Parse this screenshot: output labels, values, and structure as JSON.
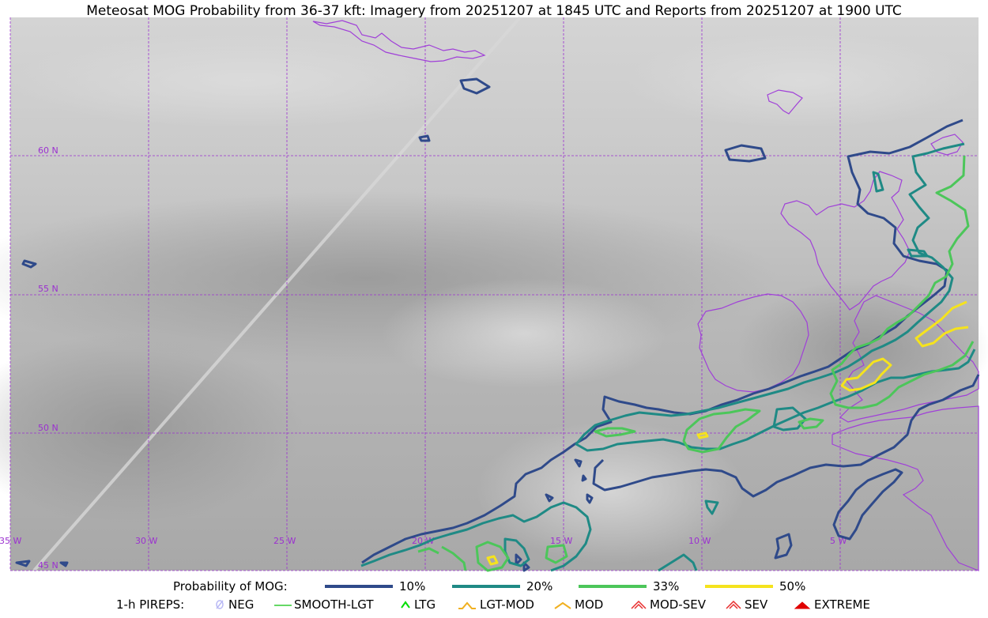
{
  "title": "Meteosat MOG Probability from 36-37 kft: Imagery from 20251207 at 1845 UTC and Reports from 20251207 at 1900 UTC",
  "map": {
    "lat_labels": [
      "60 N",
      "55 N",
      "50 N",
      "45 N"
    ],
    "lon_labels": [
      "35 W",
      "30 W",
      "25 W",
      "20 W",
      "15 W",
      "10 W",
      "5 W"
    ],
    "colors": {
      "grid": "#9b30d0",
      "coast": "#a040d8",
      "p10": "#2f4a8a",
      "p20": "#1f8a85",
      "p33": "#4cc65a",
      "p50": "#f5e31d"
    }
  },
  "legend": {
    "mog_label": "Probability of MOG:",
    "mog_items": [
      {
        "label": "10%",
        "color": "#2f4a8a"
      },
      {
        "label": "20%",
        "color": "#1f8a85"
      },
      {
        "label": "33%",
        "color": "#4cc65a"
      },
      {
        "label": "50%",
        "color": "#f5e31d"
      }
    ],
    "pirep_label": "1-h PIREPS:",
    "pirep_items": [
      {
        "label": "NEG",
        "icon": "neg-icon",
        "color": "#b9b9f5"
      },
      {
        "label": "SMOOTH-LGT",
        "icon": "smooth-lgt-icon",
        "color": "#33cc33"
      },
      {
        "label": "LTG",
        "icon": "ltg-icon",
        "color": "#00dd00"
      },
      {
        "label": "LGT-MOD",
        "icon": "lgt-mod-icon",
        "color": "#f0b020"
      },
      {
        "label": "MOD",
        "icon": "mod-icon",
        "color": "#f0b020"
      },
      {
        "label": "MOD-SEV",
        "icon": "mod-sev-icon",
        "color": "#e83030"
      },
      {
        "label": "SEV",
        "icon": "sev-icon",
        "color": "#e83030"
      },
      {
        "label": "EXTREME",
        "icon": "extreme-icon",
        "color": "#e00000"
      }
    ]
  }
}
